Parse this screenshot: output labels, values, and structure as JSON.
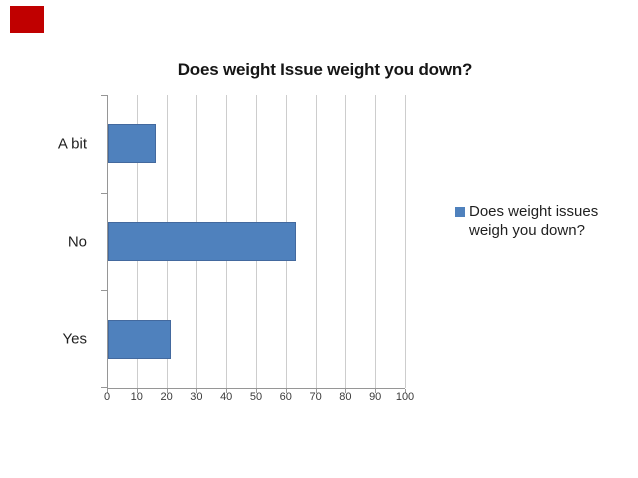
{
  "slide": {
    "background": "#ffffff",
    "corner_mark_color": "#c00000"
  },
  "chart_data": {
    "type": "bar",
    "orientation": "horizontal",
    "title": "Does weight Issue weight you down?",
    "categories": [
      "A bit",
      "No",
      "Yes"
    ],
    "series": [
      {
        "name": "Does weight issues weigh you down?",
        "values": [
          16,
          63,
          21
        ]
      }
    ],
    "xlim": [
      0,
      100
    ],
    "xticks": [
      0,
      10,
      20,
      30,
      40,
      50,
      60,
      70,
      80,
      90,
      100
    ],
    "grid": true,
    "legend_position": "right",
    "colors": {
      "bar": "#4f81bd",
      "bar_border": "#43699e",
      "gridline": "#cdcdcd",
      "axis": "#969696",
      "title_text": "#161616",
      "label_text": "#1f1f1f",
      "tick_text": "#3a3a3a"
    }
  }
}
